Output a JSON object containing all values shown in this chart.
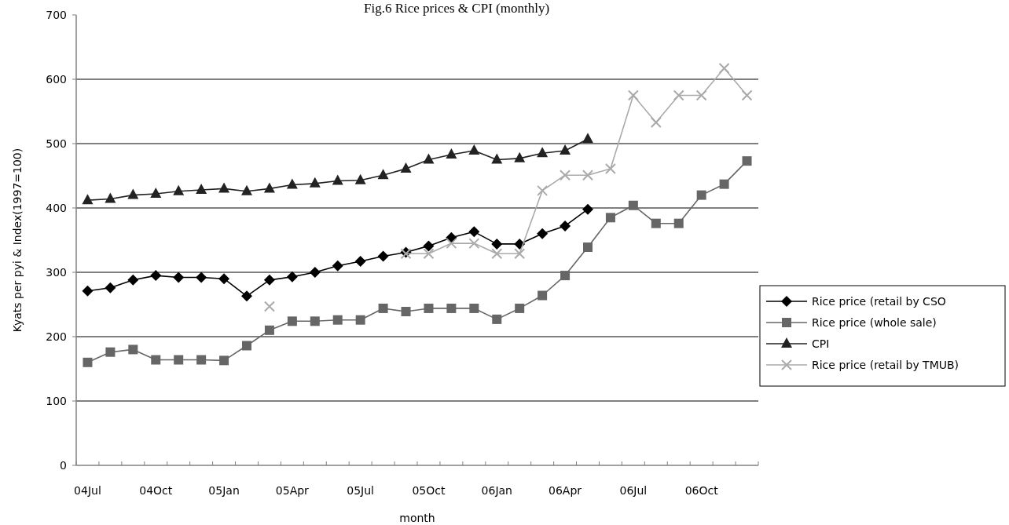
{
  "chart_data": {
    "type": "line",
    "title": "Fig.6 Rice prices & CPI (monthly)",
    "xlabel": "month",
    "ylabel": "Kyats per pyi & Index(1997=100)",
    "categories": [
      "04Jul",
      null,
      null,
      "04Oct",
      null,
      null,
      "05Jan",
      null,
      null,
      "05Apr",
      null,
      null,
      "05Jul",
      null,
      null,
      "05Oct",
      null,
      null,
      "06Jan",
      null,
      null,
      "06Apr",
      null,
      null,
      "06Jul",
      null,
      null,
      "06Oct",
      null,
      null
    ],
    "ylim": [
      0,
      700
    ],
    "yticks": [
      0,
      100,
      200,
      300,
      400,
      500,
      600,
      700
    ],
    "grid": "y",
    "legend": "right",
    "series": [
      {
        "name": "Rice price (retail by CSO",
        "color": "#000000",
        "marker": "diamond",
        "values": [
          271,
          276,
          288,
          295,
          292,
          292,
          290,
          263,
          288,
          293,
          300,
          310,
          317,
          325,
          331,
          341,
          354,
          363,
          344,
          344,
          360,
          372,
          398,
          null,
          null,
          null,
          null,
          null,
          null,
          null
        ]
      },
      {
        "name": "Rice price (whole sale)",
        "color": "#666666",
        "marker": "square",
        "values": [
          160,
          176,
          180,
          164,
          164,
          164,
          163,
          186,
          210,
          224,
          224,
          226,
          226,
          244,
          239,
          244,
          244,
          244,
          227,
          244,
          264,
          295,
          339,
          385,
          404,
          376,
          376,
          420,
          437,
          473
        ]
      },
      {
        "name": "CPI",
        "color": "#222222",
        "marker": "triangle",
        "values": [
          412,
          414,
          420,
          422,
          426,
          428,
          430,
          426,
          430,
          436,
          438,
          442,
          443,
          451,
          461,
          475,
          483,
          489,
          475,
          477,
          485,
          489,
          507,
          null,
          null,
          null,
          null,
          null,
          null,
          null
        ]
      },
      {
        "name": "Rice price (retail by TMUB)",
        "color": "#aaaaaa",
        "marker": "cross",
        "values": [
          null,
          null,
          null,
          null,
          null,
          null,
          null,
          null,
          247,
          null,
          null,
          null,
          null,
          null,
          329,
          329,
          345,
          345,
          329,
          329,
          427,
          451,
          451,
          461,
          575,
          533,
          575,
          575,
          617,
          575
        ]
      }
    ]
  }
}
